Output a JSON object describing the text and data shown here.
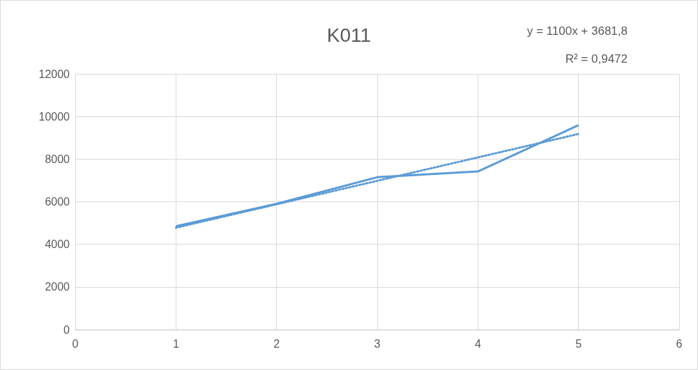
{
  "chart_data": {
    "type": "line",
    "title": "K011",
    "annotations": [
      "y = 1100x + 3681,8",
      "R² = 0,9472"
    ],
    "series": [
      {
        "color": "#5b9bd5",
        "x": [
          1,
          2,
          3,
          4,
          5
        ],
        "values": [
          4850,
          5900,
          7150,
          7420,
          9590
        ],
        "line_style": "solid"
      },
      {
        "type": "line",
        "color": "#5b9bd5",
        "x": [
          1,
          5
        ],
        "values": [
          4780,
          9180
        ],
        "line_style": "dotted"
      }
    ],
    "xlim": [
      0,
      6
    ],
    "xticks": [
      0,
      1,
      2,
      3,
      4,
      5,
      6
    ],
    "ylim": [
      0,
      12000
    ],
    "yticks": [
      0,
      2000,
      4000,
      6000,
      8000,
      10000,
      12000
    ],
    "grid": true,
    "marker": "none"
  }
}
